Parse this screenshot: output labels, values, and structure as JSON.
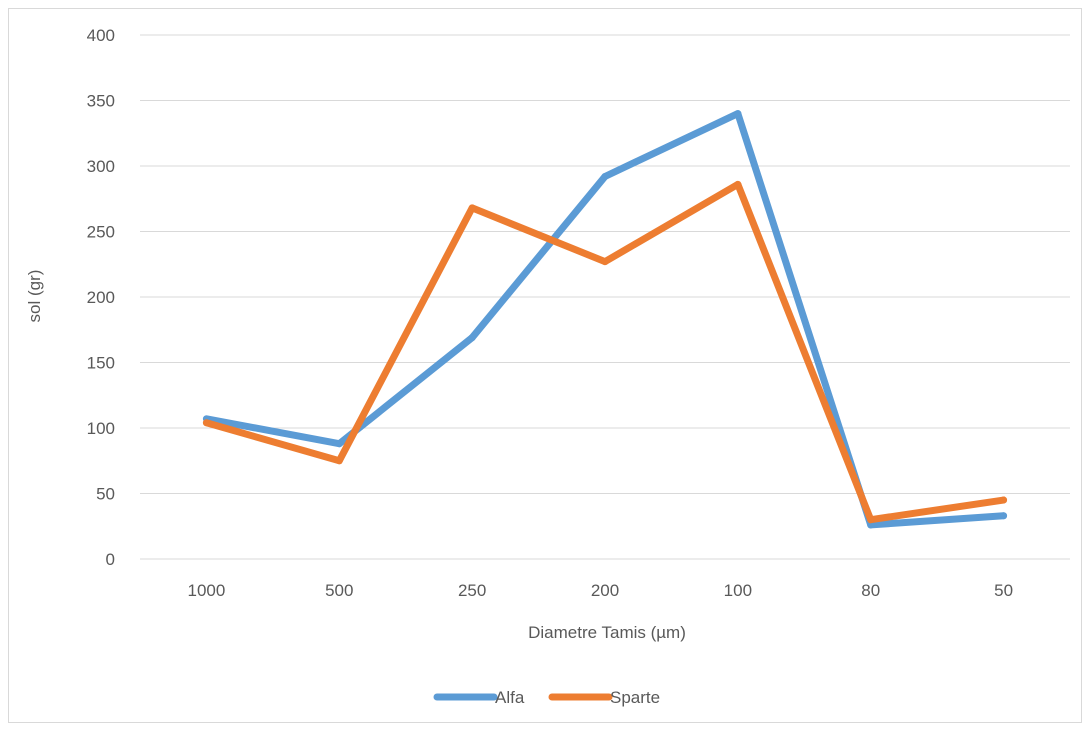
{
  "chart_data": {
    "type": "line",
    "title": "",
    "xlabel": "Diametre Tamis (µm)",
    "ylabel": "sol (gr)",
    "categories": [
      "1000",
      "500",
      "250",
      "200",
      "100",
      "80",
      "50"
    ],
    "ylim": [
      0,
      400
    ],
    "yticks": [
      0,
      50,
      100,
      150,
      200,
      250,
      300,
      350,
      400
    ],
    "grid": "horizontal",
    "legend_position": "bottom",
    "series": [
      {
        "name": "Alfa",
        "color": "#5B9BD5",
        "values": [
          107,
          88,
          169,
          292,
          340,
          26,
          33
        ]
      },
      {
        "name": "Sparte",
        "color": "#ED7D31",
        "values": [
          104,
          75,
          268,
          227,
          286,
          30,
          45
        ]
      }
    ]
  }
}
